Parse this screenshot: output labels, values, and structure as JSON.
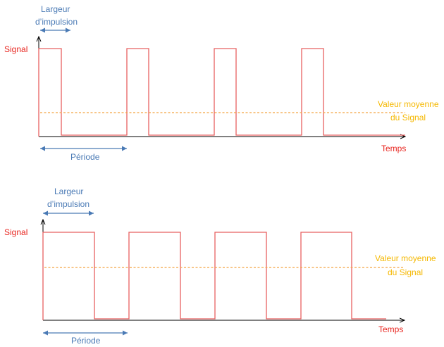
{
  "colors": {
    "signal": "#e86060",
    "axis": "#000000",
    "average": "#f4a340",
    "annotation_arrow": "#4a7ab5",
    "annotation_text": "#4a7ab5",
    "axis_label": "#e8251f",
    "average_label": "#f5b800"
  },
  "diagrams": [
    {
      "y_label": "Signal",
      "x_label": "Temps",
      "pulse_width_label": [
        "Largeur",
        "d’impulsion"
      ],
      "period_label": "Période",
      "average_label": [
        "Valeur moyenne",
        "du Signal"
      ],
      "duty_cycle": 0.25,
      "pulses": 4
    },
    {
      "y_label": "Signal",
      "x_label": "Temps",
      "pulse_width_label": [
        "Largeur",
        "d’impulsion"
      ],
      "period_label": "Période",
      "average_label": [
        "Valeur moyenne",
        "du Signal"
      ],
      "duty_cycle": 0.59,
      "pulses": 4
    }
  ]
}
